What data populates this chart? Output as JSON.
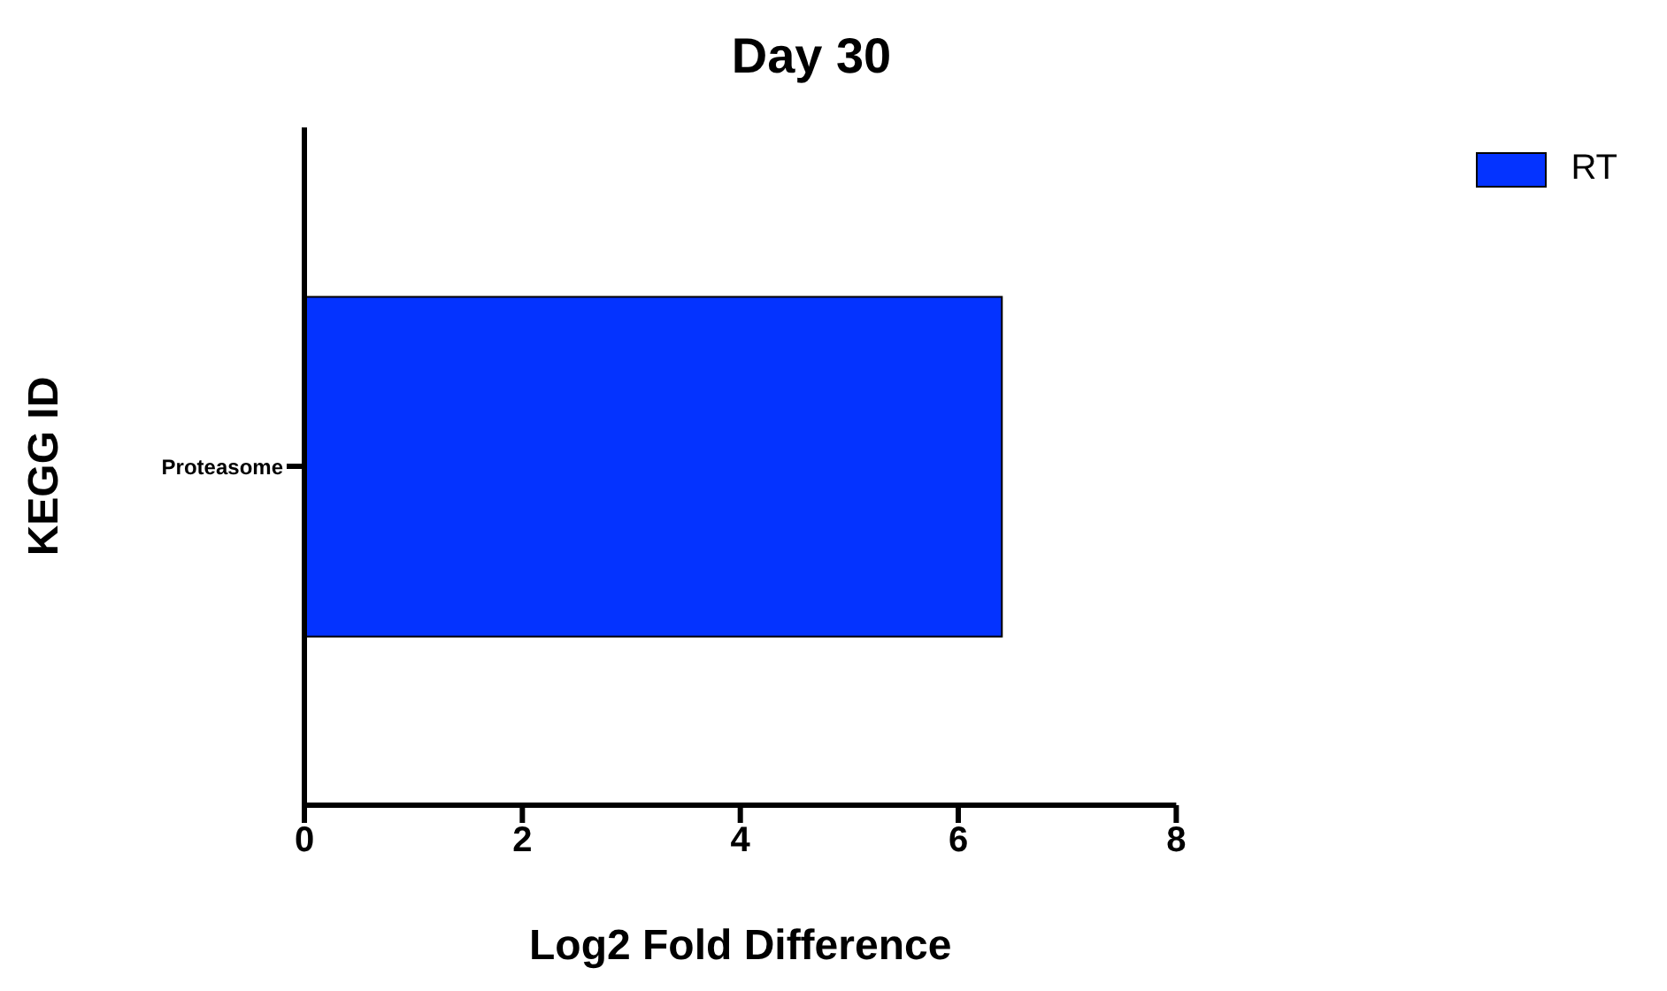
{
  "chart_data": {
    "type": "bar",
    "orientation": "horizontal",
    "title": "Day 30",
    "xlabel": "Log2 Fold Difference",
    "ylabel": "KEGG ID",
    "categories": [
      "Proteasome"
    ],
    "series": [
      {
        "name": "RT",
        "color": "#0433ff",
        "values": [
          6.4
        ]
      }
    ],
    "xlim": [
      0,
      8
    ],
    "xticks": [
      0,
      2,
      4,
      6,
      8
    ],
    "grid": false,
    "legend": "top right"
  }
}
